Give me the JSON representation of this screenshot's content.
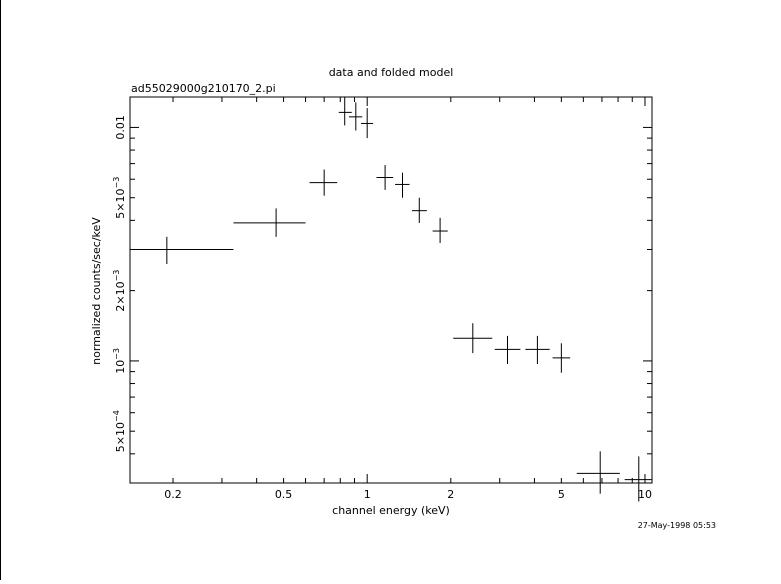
{
  "chart_data": {
    "type": "scatter",
    "title": "data and folded model",
    "subtitle": "ad55029000g210170_2.pi",
    "xlabel": "channel energy (keV)",
    "ylabel": "normalized counts/sec/keV",
    "timestamp": "27-May-1998 05:53",
    "x_scale": "log",
    "y_scale": "log",
    "xlim": [
      0.14,
      10.6
    ],
    "ylim": [
      0.0003,
      0.0135
    ],
    "grid": false,
    "x_ticks": [
      {
        "value": 0.2,
        "label": "0.2"
      },
      {
        "value": 0.5,
        "label": "0.5"
      },
      {
        "value": 1,
        "label": "1"
      },
      {
        "value": 2,
        "label": "2"
      },
      {
        "value": 5,
        "label": "5"
      },
      {
        "value": 10,
        "label": "10"
      }
    ],
    "y_ticks": [
      {
        "value": 0.0005,
        "mant": "5×10",
        "exp": "−4"
      },
      {
        "value": 0.001,
        "mant": "10",
        "exp": "−3"
      },
      {
        "value": 0.002,
        "mant": "2×10",
        "exp": "−3"
      },
      {
        "value": 0.005,
        "mant": "5×10",
        "exp": "−3"
      },
      {
        "value": 0.01,
        "mant": "0.01",
        "exp": ""
      }
    ],
    "points": [
      {
        "x": 0.19,
        "xlo": 0.14,
        "xhi": 0.33,
        "y": 0.003,
        "ylo": 0.0026,
        "yhi": 0.0034
      },
      {
        "x": 0.47,
        "xlo": 0.33,
        "xhi": 0.6,
        "y": 0.0039,
        "ylo": 0.0034,
        "yhi": 0.0045
      },
      {
        "x": 0.7,
        "xlo": 0.62,
        "xhi": 0.78,
        "y": 0.0058,
        "ylo": 0.0051,
        "yhi": 0.0066
      },
      {
        "x": 0.83,
        "xlo": 0.79,
        "xhi": 0.88,
        "y": 0.0116,
        "ylo": 0.0102,
        "yhi": 0.0135
      },
      {
        "x": 0.91,
        "xlo": 0.86,
        "xhi": 0.96,
        "y": 0.0111,
        "ylo": 0.0097,
        "yhi": 0.0128
      },
      {
        "x": 1.0,
        "xlo": 0.95,
        "xhi": 1.05,
        "y": 0.0104,
        "ylo": 0.009,
        "yhi": 0.0121
      },
      {
        "x": 1.16,
        "xlo": 1.08,
        "xhi": 1.24,
        "y": 0.0061,
        "ylo": 0.0054,
        "yhi": 0.0069
      },
      {
        "x": 1.34,
        "xlo": 1.26,
        "xhi": 1.42,
        "y": 0.0057,
        "ylo": 0.005,
        "yhi": 0.0064
      },
      {
        "x": 1.54,
        "xlo": 1.45,
        "xhi": 1.64,
        "y": 0.0044,
        "ylo": 0.0039,
        "yhi": 0.005
      },
      {
        "x": 1.83,
        "xlo": 1.72,
        "xhi": 1.95,
        "y": 0.0036,
        "ylo": 0.0032,
        "yhi": 0.0041
      },
      {
        "x": 2.4,
        "xlo": 2.04,
        "xhi": 2.82,
        "y": 0.00125,
        "ylo": 0.00108,
        "yhi": 0.00145
      },
      {
        "x": 3.2,
        "xlo": 2.88,
        "xhi": 3.56,
        "y": 0.00112,
        "ylo": 0.00097,
        "yhi": 0.00128
      },
      {
        "x": 4.1,
        "xlo": 3.71,
        "xhi": 4.54,
        "y": 0.00112,
        "ylo": 0.00097,
        "yhi": 0.00128
      },
      {
        "x": 5.0,
        "xlo": 4.65,
        "xhi": 5.38,
        "y": 0.00103,
        "ylo": 0.00089,
        "yhi": 0.00119
      },
      {
        "x": 6.9,
        "xlo": 5.68,
        "xhi": 8.12,
        "y": 0.00033,
        "ylo": 0.00027,
        "yhi": 0.00041
      },
      {
        "x": 9.5,
        "xlo": 8.45,
        "xhi": 10.6,
        "y": 0.00031,
        "ylo": 0.00025,
        "yhi": 0.00039
      }
    ]
  }
}
